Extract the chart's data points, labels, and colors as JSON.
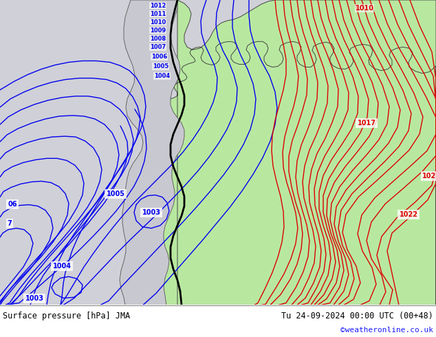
{
  "title_left": "Surface pressure [hPa] JMA",
  "title_right": "Tu 24-09-2024 00:00 UTC (00+48)",
  "copyright": "©weatheronline.co.uk",
  "copyright_color": "#1a1aff",
  "bg_color": "#d8d8d8",
  "land_color": "#b8e8a0",
  "sea_color": "#d0d0d8",
  "blue_color": "#0000ee",
  "red_color": "#dd0000",
  "black_color": "#000000",
  "fig_width": 6.34,
  "fig_height": 4.9,
  "dpi": 100
}
